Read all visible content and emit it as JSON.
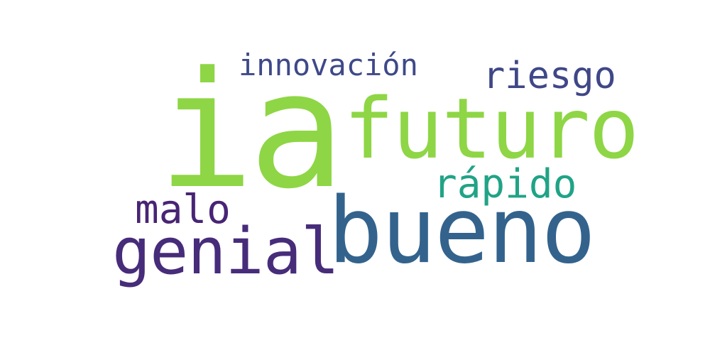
{
  "words": [
    {
      "id": "w-ia",
      "name": "word-ia",
      "text": "ia",
      "color": "#8ed645"
    },
    {
      "id": "w-futuro",
      "name": "word-futuro",
      "text": "futuro",
      "color": "#8ed645"
    },
    {
      "id": "w-bueno",
      "name": "word-bueno",
      "text": "bueno",
      "color": "#33638d"
    },
    {
      "id": "w-genial",
      "name": "word-genial",
      "text": "genial",
      "color": "#472c7a"
    },
    {
      "id": "w-malo",
      "name": "word-malo",
      "text": "malo",
      "color": "#482475"
    },
    {
      "id": "w-rapido",
      "name": "word-rapido",
      "text": "rápido",
      "color": "#20a386"
    },
    {
      "id": "w-innovacion",
      "name": "word-innovacion",
      "text": "innovación",
      "color": "#3e4989"
    },
    {
      "id": "w-riesgo",
      "name": "word-riesgo",
      "text": "riesgo",
      "color": "#3f4788"
    }
  ]
}
